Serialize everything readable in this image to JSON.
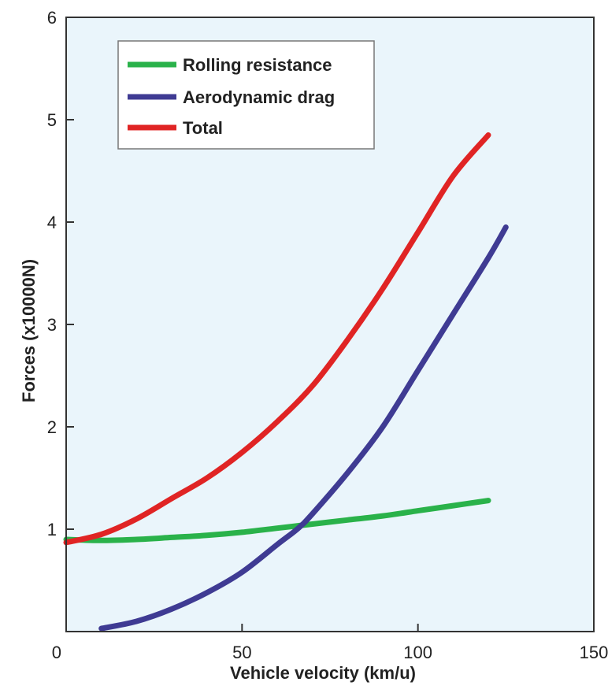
{
  "chart_data": {
    "type": "line",
    "title": "",
    "xlabel": "Vehicle velocity (km/u)",
    "ylabel": "Forces (x10000N)",
    "xlim": [
      0,
      150
    ],
    "ylim": [
      0,
      6
    ],
    "x_ticks": [
      "0",
      "50",
      "100",
      "150"
    ],
    "y_ticks": [
      "1",
      "2",
      "3",
      "4",
      "5",
      "6"
    ],
    "grid": false,
    "legend_position": "top-left",
    "plot_background": "#eaf5fb",
    "series": [
      {
        "name": "Rolling resistance",
        "color": "#2ab24a",
        "x": [
          0,
          10,
          20,
          30,
          40,
          50,
          60,
          70,
          80,
          90,
          100,
          110,
          120
        ],
        "y": [
          0.9,
          0.89,
          0.9,
          0.92,
          0.94,
          0.97,
          1.01,
          1.05,
          1.09,
          1.13,
          1.18,
          1.23,
          1.28
        ]
      },
      {
        "name": "Aerodynamic drag",
        "color": "#3f3b93",
        "x": [
          10,
          20,
          30,
          40,
          50,
          60,
          66,
          70,
          80,
          90,
          100,
          110,
          120,
          125
        ],
        "y": [
          0.03,
          0.1,
          0.22,
          0.38,
          0.58,
          0.85,
          1.01,
          1.15,
          1.55,
          2.0,
          2.55,
          3.1,
          3.65,
          3.95
        ]
      },
      {
        "name": "Total",
        "color": "#e02424",
        "x": [
          0,
          10,
          20,
          30,
          40,
          50,
          60,
          70,
          80,
          90,
          100,
          110,
          120
        ],
        "y": [
          0.87,
          0.95,
          1.1,
          1.3,
          1.5,
          1.75,
          2.05,
          2.4,
          2.85,
          3.35,
          3.9,
          4.45,
          4.85
        ]
      }
    ]
  }
}
